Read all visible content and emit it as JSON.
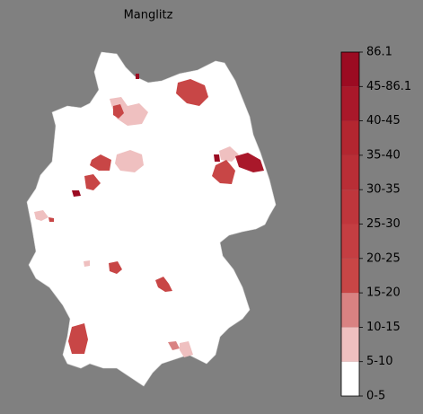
{
  "title": "Manglitz",
  "legend": {
    "ticks": [
      "0-5",
      "5-10",
      "10-15",
      "15-20",
      "20-25",
      "25-30",
      "30-35",
      "35-40",
      "40-45",
      "45-86.1",
      "86.1"
    ],
    "colors": [
      "#ffffff",
      "#efc0c0",
      "#d98282",
      "#c84646",
      "#c43e42",
      "#bf363c",
      "#b92e36",
      "#b32630",
      "#a9182a",
      "#9b0b22"
    ]
  }
}
